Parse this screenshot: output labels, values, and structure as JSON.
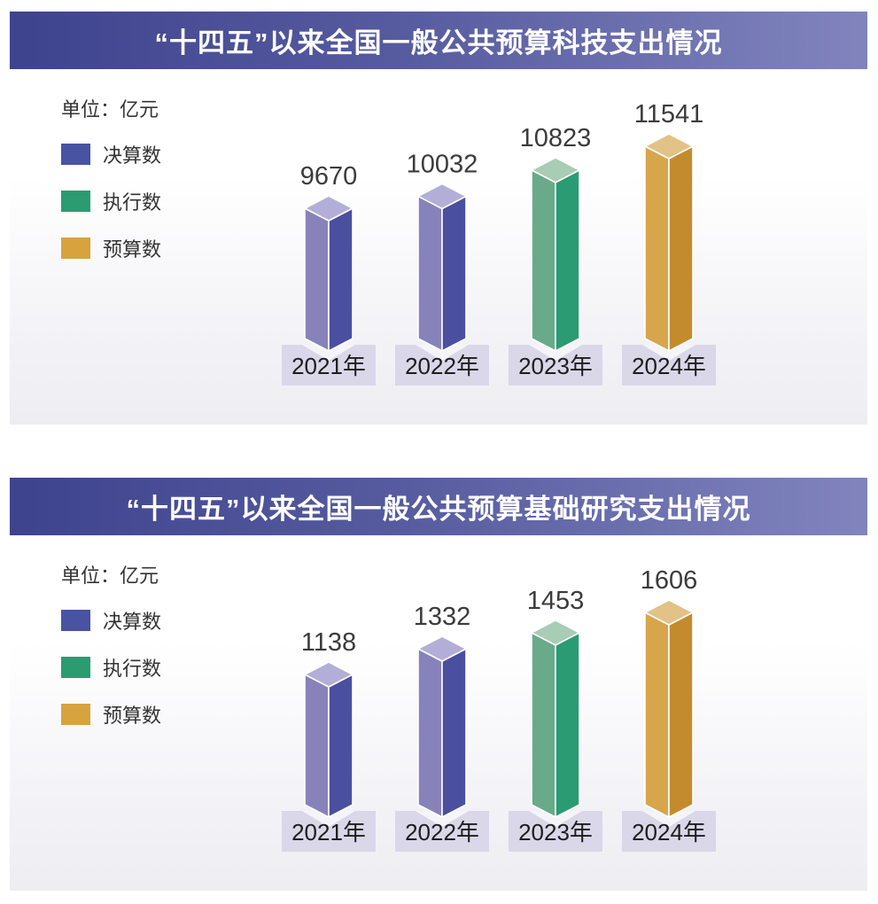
{
  "page": {
    "background": "#ffffff"
  },
  "colors": {
    "title_bar_gradient_left": "#3e438e",
    "title_bar_gradient_right": "#8184bd",
    "title_text": "#ffffff",
    "panel_bg_bottom": "#ededf2",
    "year_box_bg": "#d9d7e8",
    "notch_fill": "#f5f5f9",
    "value_text": "#3b3b3b",
    "year_text": "#1d1d1d",
    "legend_text": "#333333",
    "series": {
      "决算数": {
        "swatch": "#4853a2",
        "left": "#8783ba",
        "right": "#4a4f9f",
        "top": "#b2aed7"
      },
      "执行数": {
        "swatch": "#2b9b72",
        "left": "#68aa8a",
        "right": "#2a9b72",
        "top": "#a8ccb4"
      },
      "预算数": {
        "swatch": "#d6a33f",
        "left": "#d7a54c",
        "right": "#c38b2d",
        "top": "#e2c286"
      }
    }
  },
  "chart_data": [
    {
      "type": "bar",
      "title": "“十四五”以来全国一般公共预算科技支出情况",
      "unit": "单位：亿元",
      "categories": [
        "2021年",
        "2022年",
        "2023年",
        "2024年"
      ],
      "values": [
        9670,
        10032,
        10823,
        11541
      ],
      "bar_series": [
        "决算数",
        "决算数",
        "执行数",
        "预算数"
      ],
      "legend_entries": [
        "决算数",
        "执行数",
        "预算数"
      ],
      "legend_position": "top-left",
      "grid": false,
      "style": "3D pictorial columns, value labels above bars, year labels in boxes below"
    },
    {
      "type": "bar",
      "title": "“十四五”以来全国一般公共预算基础研究支出情况",
      "unit": "单位：亿元",
      "categories": [
        "2021年",
        "2022年",
        "2023年",
        "2024年"
      ],
      "values": [
        1138,
        1332,
        1453,
        1606
      ],
      "bar_series": [
        "决算数",
        "决算数",
        "执行数",
        "预算数"
      ],
      "legend_entries": [
        "决算数",
        "执行数",
        "预算数"
      ],
      "legend_position": "top-left",
      "grid": false,
      "style": "3D pictorial columns, value labels above bars, year labels in boxes below"
    }
  ]
}
